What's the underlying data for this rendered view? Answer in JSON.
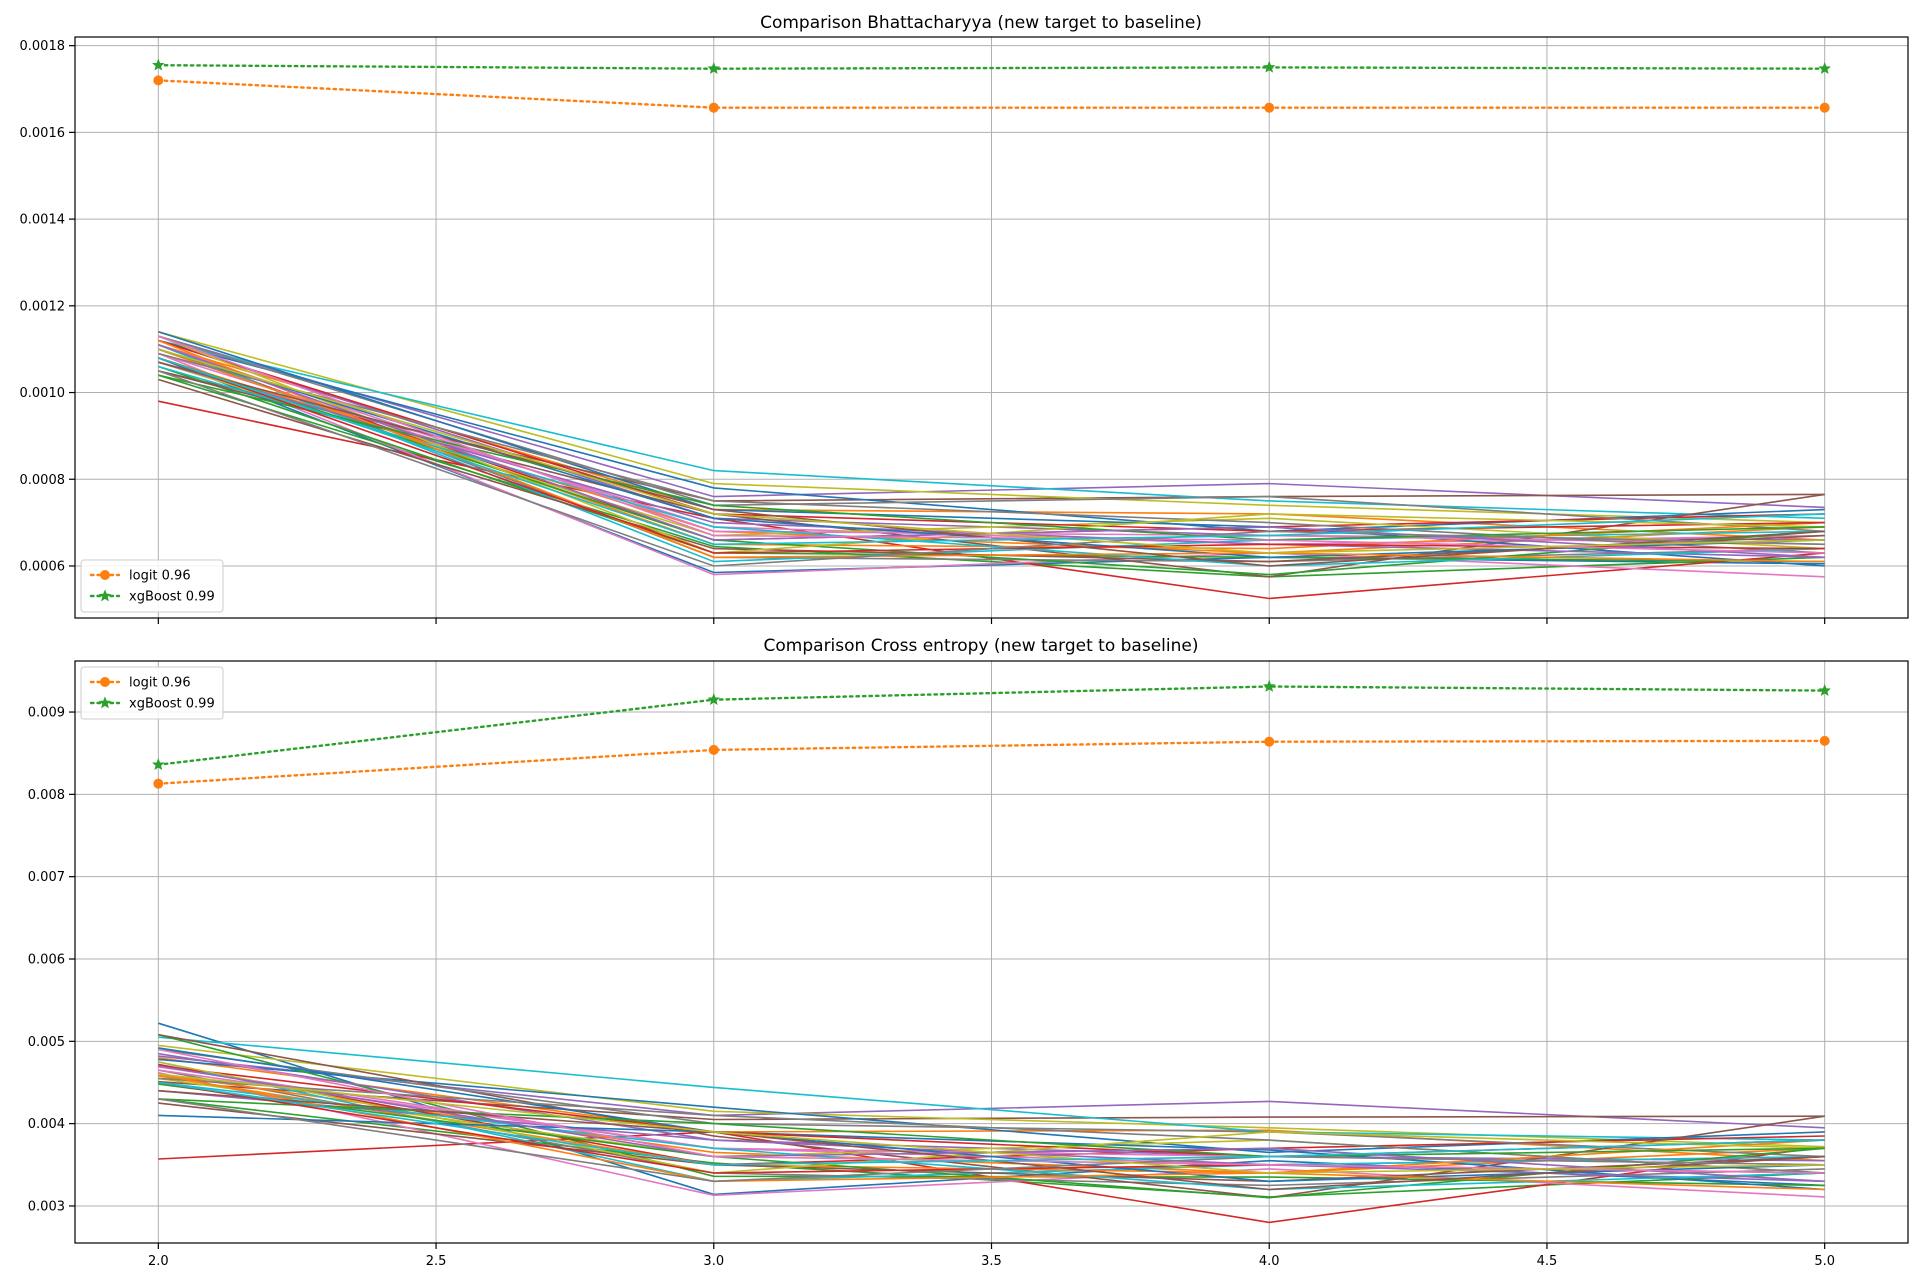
{
  "chart_data": [
    {
      "type": "line",
      "title": "Comparison Bhattacharyya (new target to baseline)",
      "xlabel": "",
      "ylabel": "",
      "x": [
        2.0,
        3.0,
        4.0,
        5.0
      ],
      "xlim": [
        1.85,
        5.15
      ],
      "ylim": [
        0.00048,
        0.00182
      ],
      "xticks": [
        "2.0",
        "2.5",
        "3.0",
        "3.5",
        "4.0",
        "4.5",
        "5.0"
      ],
      "yticks": [
        "0.0006",
        "0.0008",
        "0.0010",
        "0.0012",
        "0.0014",
        "0.0016",
        "0.0018"
      ],
      "show_x_tick_labels": false,
      "grid": true,
      "legend": "bottom-left",
      "series": [
        {
          "name": "logit 0.96",
          "style": "dotted",
          "marker": "circle",
          "color": "#ff7f0e",
          "values": [
            0.00172,
            0.001657,
            0.001657,
            0.001657
          ]
        },
        {
          "name": "xgBoost 0.99",
          "style": "dotted",
          "marker": "star",
          "color": "#2ca02c",
          "values": [
            0.001755,
            0.001747,
            0.00175,
            0.001747
          ]
        }
      ],
      "background_series": [
        {
          "color": "#1f77b4",
          "values": [
            0.00108,
            0.000585,
            0.00062,
            0.000605
          ]
        },
        {
          "color": "#ff7f0e",
          "values": [
            0.00111,
            0.00073,
            0.00072,
            0.00066
          ]
        },
        {
          "color": "#2ca02c",
          "values": [
            0.00104,
            0.000645,
            0.000575,
            0.00062
          ]
        },
        {
          "color": "#d62728",
          "values": [
            0.00098,
            0.00071,
            0.000525,
            0.00063
          ]
        },
        {
          "color": "#9467bd",
          "values": [
            0.00113,
            0.00076,
            0.00079,
            0.000735
          ]
        },
        {
          "color": "#8c564b",
          "values": [
            0.00105,
            0.00075,
            0.00076,
            0.000765
          ]
        },
        {
          "color": "#e377c2",
          "values": [
            0.00109,
            0.00058,
            0.00063,
            0.000575
          ]
        },
        {
          "color": "#7f7f7f",
          "values": [
            0.00111,
            0.00062,
            0.00061,
            0.00064
          ]
        },
        {
          "color": "#bcbd22",
          "values": [
            0.00114,
            0.00079,
            0.00074,
            0.0007
          ]
        },
        {
          "color": "#17becf",
          "values": [
            0.00112,
            0.00082,
            0.00075,
            0.00071
          ]
        },
        {
          "color": "#1f77b4",
          "values": [
            0.00112,
            0.00078,
            0.00068,
            0.00073
          ]
        },
        {
          "color": "#ff7f0e",
          "values": [
            0.00108,
            0.00068,
            0.00063,
            0.00069
          ]
        },
        {
          "color": "#2ca02c",
          "values": [
            0.00106,
            0.00063,
            0.00062,
            0.00061
          ]
        },
        {
          "color": "#d62728",
          "values": [
            0.0011,
            0.00066,
            0.00069,
            0.00072
          ]
        },
        {
          "color": "#9467bd",
          "values": [
            0.00112,
            0.00071,
            0.00067,
            0.00066
          ]
        },
        {
          "color": "#8c564b",
          "values": [
            0.00105,
            0.00072,
            0.000575,
            0.000765
          ]
        },
        {
          "color": "#e377c2",
          "values": [
            0.00109,
            0.00069,
            0.00065,
            0.00067
          ]
        },
        {
          "color": "#7f7f7f",
          "values": [
            0.00113,
            0.00074,
            0.00076,
            0.00068
          ]
        },
        {
          "color": "#bcbd22",
          "values": [
            0.00107,
            0.00067,
            0.00071,
            0.00064
          ]
        },
        {
          "color": "#17becf",
          "values": [
            0.00111,
            0.00061,
            0.00066,
            0.00068
          ]
        },
        {
          "color": "#1f77b4",
          "values": [
            0.00114,
            0.00073,
            0.00069,
            0.0006
          ]
        },
        {
          "color": "#ff7f0e",
          "values": [
            0.0011,
            0.00065,
            0.00064,
            0.0007
          ]
        },
        {
          "color": "#2ca02c",
          "values": [
            0.00108,
            0.00066,
            0.00058,
            0.00068
          ]
        },
        {
          "color": "#d62728",
          "values": [
            0.00112,
            0.00072,
            0.00068,
            0.0007
          ]
        },
        {
          "color": "#9467bd",
          "values": [
            0.00107,
            0.0007,
            0.00065,
            0.00062
          ]
        },
        {
          "color": "#8c564b",
          "values": [
            0.00103,
            0.00064,
            0.00061,
            0.00067
          ]
        },
        {
          "color": "#e377c2",
          "values": [
            0.00111,
            0.00068,
            0.00067,
            0.00065
          ]
        },
        {
          "color": "#7f7f7f",
          "values": [
            0.00109,
            0.00075,
            0.0007,
            0.00063
          ]
        },
        {
          "color": "#bcbd22",
          "values": [
            0.00113,
            0.00063,
            0.00072,
            0.00069
          ]
        },
        {
          "color": "#17becf",
          "values": [
            0.00106,
            0.00069,
            0.0006,
            0.00064
          ]
        },
        {
          "color": "#1f77b4",
          "values": [
            0.0011,
            0.00071,
            0.00062,
            0.00066
          ]
        },
        {
          "color": "#ff7f0e",
          "values": [
            0.00112,
            0.00062,
            0.00063,
            0.00061
          ]
        },
        {
          "color": "#2ca02c",
          "values": [
            0.00104,
            0.00074,
            0.00066,
            0.00069
          ]
        },
        {
          "color": "#d62728",
          "values": [
            0.00108,
            0.00063,
            0.00065,
            0.00064
          ]
        },
        {
          "color": "#9467bd",
          "values": [
            0.00111,
            0.00066,
            0.00069,
            0.00062
          ]
        },
        {
          "color": "#8c564b",
          "values": [
            0.00107,
            0.00073,
            0.0006,
            0.00068
          ]
        },
        {
          "color": "#e377c2",
          "values": [
            0.00113,
            0.00067,
            0.00066,
            0.00063
          ]
        },
        {
          "color": "#7f7f7f",
          "values": [
            0.00105,
            0.0006,
            0.00068,
            0.00065
          ]
        },
        {
          "color": "#bcbd22",
          "values": [
            0.0011,
            0.00072,
            0.00063,
            0.00066
          ]
        },
        {
          "color": "#17becf",
          "values": [
            0.00108,
            0.00065,
            0.00067,
            0.00072
          ]
        }
      ]
    },
    {
      "type": "line",
      "title": "Comparison Cross entropy (new target to baseline)",
      "xlabel": "",
      "ylabel": "",
      "x": [
        2.0,
        3.0,
        4.0,
        5.0
      ],
      "xlim": [
        1.85,
        5.15
      ],
      "ylim": [
        0.00255,
        0.00962
      ],
      "xticks": [
        "2.0",
        "2.5",
        "3.0",
        "3.5",
        "4.0",
        "4.5",
        "5.0"
      ],
      "yticks": [
        "0.003",
        "0.004",
        "0.005",
        "0.006",
        "0.007",
        "0.008",
        "0.009"
      ],
      "show_x_tick_labels": true,
      "grid": true,
      "legend": "top-left",
      "series": [
        {
          "name": "logit 0.96",
          "style": "dotted",
          "marker": "circle",
          "color": "#ff7f0e",
          "values": [
            0.00813,
            0.00854,
            0.00864,
            0.00865
          ]
        },
        {
          "name": "xgBoost 0.99",
          "style": "dotted",
          "marker": "star",
          "color": "#2ca02c",
          "values": [
            0.00836,
            0.00915,
            0.00931,
            0.00926
          ]
        }
      ],
      "background_series": [
        {
          "color": "#1f77b4",
          "values": [
            0.00522,
            0.00314,
            0.00355,
            0.00325
          ]
        },
        {
          "color": "#ff7f0e",
          "values": [
            0.0048,
            0.0039,
            0.00392,
            0.00355
          ]
        },
        {
          "color": "#2ca02c",
          "values": [
            0.0043,
            0.00352,
            0.00311,
            0.0034
          ]
        },
        {
          "color": "#d62728",
          "values": [
            0.00357,
            0.0039,
            0.0028,
            0.00372
          ]
        },
        {
          "color": "#9467bd",
          "values": [
            0.00482,
            0.0041,
            0.00427,
            0.00395
          ]
        },
        {
          "color": "#8c564b",
          "values": [
            0.00451,
            0.00405,
            0.00408,
            0.00409
          ]
        },
        {
          "color": "#e377c2",
          "values": [
            0.00462,
            0.00313,
            0.00345,
            0.00311
          ]
        },
        {
          "color": "#7f7f7f",
          "values": [
            0.00465,
            0.0034,
            0.00325,
            0.00345
          ]
        },
        {
          "color": "#bcbd22",
          "values": [
            0.00495,
            0.00415,
            0.00395,
            0.00372
          ]
        },
        {
          "color": "#17becf",
          "values": [
            0.00505,
            0.00444,
            0.0039,
            0.0038
          ]
        },
        {
          "color": "#1f77b4",
          "values": [
            0.00478,
            0.0042,
            0.00365,
            0.0039
          ]
        },
        {
          "color": "#ff7f0e",
          "values": [
            0.0046,
            0.00365,
            0.0034,
            0.0037
          ]
        },
        {
          "color": "#2ca02c",
          "values": [
            0.00508,
            0.00336,
            0.00335,
            0.00325
          ]
        },
        {
          "color": "#d62728",
          "values": [
            0.00472,
            0.0035,
            0.0037,
            0.00385
          ]
        },
        {
          "color": "#9467bd",
          "values": [
            0.00485,
            0.0038,
            0.0036,
            0.00355
          ]
        },
        {
          "color": "#8c564b",
          "values": [
            0.00508,
            0.00385,
            0.0031,
            0.00409
          ]
        },
        {
          "color": "#e377c2",
          "values": [
            0.00469,
            0.0037,
            0.0035,
            0.0036
          ]
        },
        {
          "color": "#7f7f7f",
          "values": [
            0.0049,
            0.004,
            0.0039,
            0.0036
          ]
        },
        {
          "color": "#bcbd22",
          "values": [
            0.00455,
            0.0036,
            0.0038,
            0.0034
          ]
        },
        {
          "color": "#17becf",
          "values": [
            0.00475,
            0.0033,
            0.0035,
            0.0036
          ]
        },
        {
          "color": "#1f77b4",
          "values": [
            0.00492,
            0.0039,
            0.00368,
            0.0032
          ]
        },
        {
          "color": "#ff7f0e",
          "values": [
            0.00458,
            0.0035,
            0.0034,
            0.0038
          ]
        },
        {
          "color": "#2ca02c",
          "values": [
            0.00448,
            0.0036,
            0.0031,
            0.0037
          ]
        },
        {
          "color": "#d62728",
          "values": [
            0.0047,
            0.0039,
            0.0036,
            0.0038
          ]
        },
        {
          "color": "#9467bd",
          "values": [
            0.0044,
            0.0038,
            0.0035,
            0.0033
          ]
        },
        {
          "color": "#8c564b",
          "values": [
            0.00425,
            0.0035,
            0.0033,
            0.0036
          ]
        },
        {
          "color": "#e377c2",
          "values": [
            0.00465,
            0.0037,
            0.0036,
            0.0035
          ]
        },
        {
          "color": "#7f7f7f",
          "values": [
            0.00455,
            0.0041,
            0.0038,
            0.0034
          ]
        },
        {
          "color": "#bcbd22",
          "values": [
            0.00475,
            0.0034,
            0.0039,
            0.0037
          ]
        },
        {
          "color": "#17becf",
          "values": [
            0.0045,
            0.0037,
            0.0032,
            0.0034
          ]
        },
        {
          "color": "#1f77b4",
          "values": [
            0.0041,
            0.0039,
            0.0033,
            0.0035
          ]
        },
        {
          "color": "#ff7f0e",
          "values": [
            0.0046,
            0.0033,
            0.0034,
            0.0032
          ]
        },
        {
          "color": "#2ca02c",
          "values": [
            0.0043,
            0.004,
            0.0036,
            0.0037
          ]
        },
        {
          "color": "#d62728",
          "values": [
            0.0045,
            0.0034,
            0.0035,
            0.0034
          ]
        },
        {
          "color": "#9467bd",
          "values": [
            0.0047,
            0.0036,
            0.0037,
            0.0033
          ]
        },
        {
          "color": "#8c564b",
          "values": [
            0.0044,
            0.0039,
            0.0032,
            0.0036
          ]
        },
        {
          "color": "#e377c2",
          "values": [
            0.0049,
            0.0036,
            0.0035,
            0.0034
          ]
        },
        {
          "color": "#7f7f7f",
          "values": [
            0.0043,
            0.0033,
            0.0036,
            0.0035
          ]
        },
        {
          "color": "#bcbd22",
          "values": [
            0.0046,
            0.0039,
            0.0034,
            0.0035
          ]
        },
        {
          "color": "#17becf",
          "values": [
            0.0045,
            0.0035,
            0.0036,
            0.0038
          ]
        }
      ]
    }
  ]
}
